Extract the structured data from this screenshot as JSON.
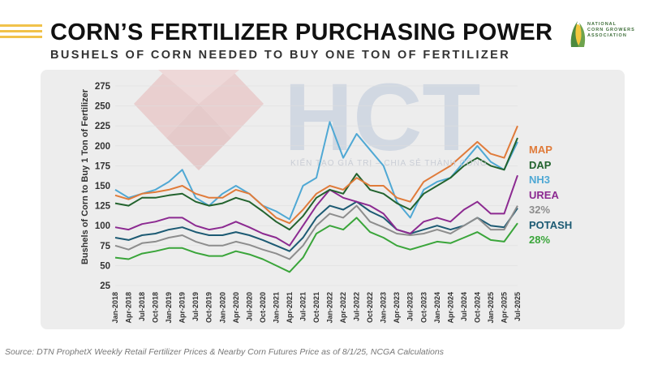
{
  "header": {
    "title": "CORN’S FERTILIZER PURCHASING POWER",
    "subtitle": "BUSHELS OF CORN NEEDED TO BUY ONE TON OF FERTILIZER"
  },
  "logo": {
    "line1": "NATIONAL",
    "line2": "CORN GROWERS",
    "line3": "ASSOCIATION"
  },
  "watermark": {
    "brand": "HCT",
    "tagline": "KIẾN TẠO GIÁ TRỊ – CHIA SẺ THÀNH CÔNG"
  },
  "source": "Source: DTN ProphetX Weekly Retail Fertilizer Prices & Nearby Corn Futures Price as of 8/1/25, NCGA Calculations",
  "legend": [
    {
      "label": "MAP",
      "color": "#e07b3a"
    },
    {
      "label": "DAP",
      "color": "#23632e"
    },
    {
      "label": "NH3",
      "color": "#4fa8d4"
    },
    {
      "label": "UREA",
      "color": "#8c2a91"
    },
    {
      "label": "32%",
      "color": "#8d8d8d"
    },
    {
      "label": "POTASH",
      "color": "#1c5a73"
    },
    {
      "label": "28%",
      "color": "#3aa53a"
    }
  ],
  "chart_data": {
    "type": "line",
    "title": "CORN’S FERTILIZER PURCHASING POWER",
    "subtitle": "BUSHELS OF CORN NEEDED TO BUY ONE TON OF FERTILIZER",
    "xlabel": "",
    "ylabel": "Bushels of Corn to Buy 1 Ton of Fertilizer",
    "ylim": [
      25,
      275
    ],
    "yticks": [
      25,
      50,
      75,
      100,
      125,
      150,
      175,
      200,
      225,
      250,
      275
    ],
    "x": [
      "Jan-2018",
      "Apr-2018",
      "Jul-2018",
      "Oct-2018",
      "Jan-2019",
      "Apr-2019",
      "Jul-2019",
      "Oct-2019",
      "Jan-2020",
      "Apr-2020",
      "Jul-2020",
      "Oct-2020",
      "Jan-2021",
      "Apr-2021",
      "Jul-2021",
      "Oct-2021",
      "Jan-2022",
      "Apr-2022",
      "Jul-2022",
      "Oct-2022",
      "Jan-2023",
      "Apr-2023",
      "Jul-2023",
      "Oct-2023",
      "Jan-2024",
      "Apr-2024",
      "Jul-2024",
      "Oct-2024",
      "Jan-2025",
      "Apr-2025",
      "Jul-2025"
    ],
    "series": [
      {
        "name": "MAP",
        "color": "#e07b3a",
        "values": [
          138,
          133,
          140,
          142,
          145,
          150,
          140,
          135,
          135,
          145,
          140,
          125,
          110,
          103,
          120,
          140,
          150,
          145,
          160,
          150,
          150,
          135,
          130,
          155,
          165,
          175,
          190,
          205,
          190,
          185,
          225
        ]
      },
      {
        "name": "DAP",
        "color": "#23632e",
        "values": [
          128,
          125,
          135,
          135,
          138,
          140,
          130,
          125,
          128,
          135,
          130,
          118,
          105,
          95,
          112,
          135,
          145,
          140,
          165,
          145,
          140,
          128,
          120,
          140,
          150,
          160,
          175,
          185,
          175,
          170,
          210
        ]
      },
      {
        "name": "NH3",
        "color": "#4fa8d4",
        "values": [
          145,
          135,
          140,
          145,
          155,
          170,
          135,
          125,
          140,
          150,
          140,
          125,
          118,
          108,
          150,
          160,
          230,
          185,
          215,
          195,
          175,
          130,
          110,
          145,
          155,
          160,
          180,
          200,
          180,
          170,
          205
        ]
      },
      {
        "name": "UREA",
        "color": "#8c2a91",
        "values": [
          98,
          95,
          102,
          105,
          110,
          110,
          100,
          95,
          98,
          105,
          98,
          90,
          85,
          75,
          100,
          125,
          145,
          135,
          130,
          125,
          115,
          95,
          90,
          105,
          110,
          105,
          120,
          130,
          115,
          115,
          163
        ]
      },
      {
        "name": "32%",
        "color": "#8d8d8d",
        "values": [
          75,
          70,
          78,
          80,
          85,
          88,
          80,
          75,
          75,
          80,
          76,
          70,
          65,
          58,
          75,
          100,
          115,
          110,
          125,
          105,
          98,
          90,
          88,
          90,
          95,
          90,
          100,
          110,
          95,
          95,
          125
        ]
      },
      {
        "name": "POTASH",
        "color": "#1c5a73",
        "values": [
          85,
          82,
          88,
          90,
          95,
          98,
          92,
          88,
          88,
          92,
          88,
          82,
          75,
          68,
          85,
          110,
          125,
          120,
          130,
          118,
          110,
          95,
          90,
          95,
          100,
          95,
          100,
          110,
          100,
          98,
          122
        ]
      },
      {
        "name": "28%",
        "color": "#3aa53a",
        "values": [
          60,
          58,
          65,
          68,
          72,
          72,
          66,
          62,
          62,
          68,
          64,
          58,
          50,
          42,
          60,
          90,
          100,
          95,
          110,
          92,
          85,
          75,
          70,
          75,
          80,
          78,
          85,
          92,
          82,
          80,
          103
        ]
      }
    ]
  }
}
